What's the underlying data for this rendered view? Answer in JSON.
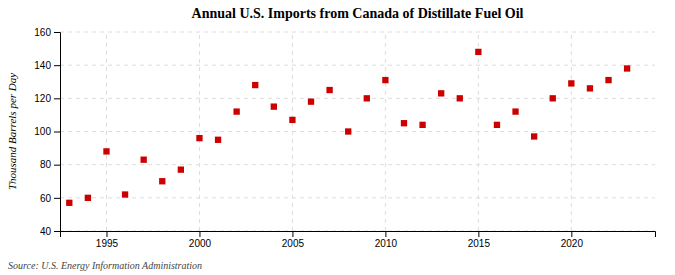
{
  "chart_data": {
    "type": "scatter",
    "title": "Annual U.S. Imports from Canada of Distillate Fuel Oil",
    "ylabel": "Thousand Barrels per Day",
    "annotations": [
      "Source: U.S. Energy Information Administration"
    ],
    "x": [
      1993,
      1994,
      1995,
      1996,
      1997,
      1998,
      1999,
      2000,
      2001,
      2002,
      2003,
      2004,
      2005,
      2006,
      2007,
      2008,
      2009,
      2010,
      2011,
      2012,
      2013,
      2014,
      2015,
      2016,
      2017,
      2018,
      2019,
      2020,
      2021,
      2022,
      2023
    ],
    "values": [
      57,
      60,
      88,
      62,
      83,
      70,
      77,
      96,
      95,
      112,
      128,
      115,
      107,
      118,
      125,
      100,
      120,
      131,
      105,
      104,
      123,
      120,
      148,
      104,
      112,
      97,
      120,
      129,
      126,
      131,
      138
    ],
    "color": "#cc0000",
    "marker": "square",
    "xlim": [
      1992.5,
      2024.5
    ],
    "xticks": [
      1995,
      2000,
      2005,
      2010,
      2015,
      2020
    ],
    "ylim": [
      40,
      160
    ],
    "yticks": [
      40,
      60,
      80,
      100,
      120,
      140,
      160
    ],
    "grid": true
  }
}
